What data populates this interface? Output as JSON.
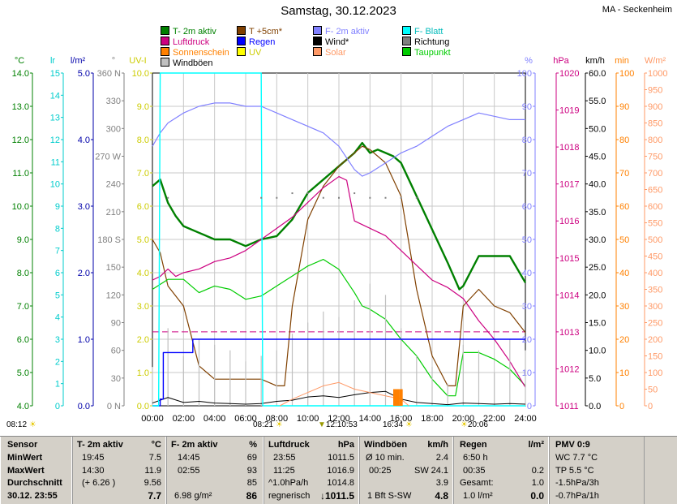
{
  "title": "Samstag, 30.12.2023",
  "station": "MA - Seckenheim",
  "legend": [
    {
      "label": "T- 2m aktiv",
      "color": "#008000"
    },
    {
      "label": "T +5cm*",
      "color": "#804000"
    },
    {
      "label": "F- 2m aktiv",
      "color": "#8080ff"
    },
    {
      "label": "F- Blatt",
      "color": "#00ffff"
    },
    {
      "label": "Luftdruck",
      "color": "#cc0080"
    },
    {
      "label": "Regen",
      "color": "#0000ff"
    },
    {
      "label": "Wind*",
      "color": "#000000"
    },
    {
      "label": "Richtung",
      "color": "#808080"
    },
    {
      "label": "Sonnenschein",
      "color": "#ff8000"
    },
    {
      "label": "UV",
      "color": "#ffff00"
    },
    {
      "label": "Solar",
      "color": "#ff9966"
    },
    {
      "label": "Taupunkt",
      "color": "#00cc00"
    },
    {
      "label": "Windböen",
      "color": "#c0c0c0"
    }
  ],
  "axes": [
    {
      "unit": "°C",
      "color": "#008000",
      "ticks": [
        "14.0",
        "13.0",
        "12.0",
        "11.0",
        "10.0",
        "9.0",
        "8.0",
        "7.0",
        "6.0",
        "5.0",
        "4.0"
      ]
    },
    {
      "unit": "lr",
      "color": "#00cccc",
      "ticks": [
        "15",
        "14",
        "13",
        "12",
        "11",
        "10",
        "9",
        "8",
        "7",
        "6",
        "5",
        "4",
        "3",
        "2",
        "1",
        "0"
      ]
    },
    {
      "unit": "l/m²",
      "color": "#0000aa",
      "ticks": [
        "5.0",
        "4.0",
        "3.0",
        "2.0",
        "1.0",
        "0.0"
      ]
    },
    {
      "unit": "°",
      "color": "#808080",
      "ticks": [
        "360 N",
        "330",
        "300",
        "270 W",
        "240",
        "210",
        "180 S",
        "150",
        "120",
        "90",
        "60",
        "30",
        "0 N"
      ]
    },
    {
      "unit": "UV-I",
      "color": "#cccc00",
      "ticks": [
        "10.0",
        "9.0",
        "8.0",
        "7.0",
        "6.0",
        "5.0",
        "4.0",
        "3.0",
        "2.0",
        "1.0",
        "0.0"
      ]
    },
    {
      "unit": "%",
      "color": "#8080ff",
      "ticks": [
        "100",
        "90",
        "80",
        "70",
        "60",
        "50",
        "40",
        "30",
        "20",
        "10",
        "0"
      ]
    },
    {
      "unit": "hPa",
      "color": "#cc0080",
      "ticks": [
        "1020",
        "1019",
        "1018",
        "1017",
        "1016",
        "1015",
        "1014",
        "1013",
        "1012",
        "1011"
      ]
    },
    {
      "unit": "km/h",
      "color": "#000000",
      "ticks": [
        "60.0",
        "55.0",
        "50.0",
        "45.0",
        "40.0",
        "35.0",
        "30.0",
        "25.0",
        "20.0",
        "15.0",
        "10.0",
        "5.0",
        "0.0"
      ]
    },
    {
      "unit": "min",
      "color": "#ff8000",
      "ticks": [
        "100",
        "90",
        "80",
        "70",
        "60",
        "50",
        "40",
        "30",
        "20",
        "10",
        "0"
      ]
    },
    {
      "unit": "W/m²",
      "color": "#ff9966",
      "ticks": [
        "1000",
        "950",
        "900",
        "850",
        "800",
        "750",
        "700",
        "650",
        "600",
        "550",
        "500",
        "450",
        "400",
        "350",
        "300",
        "250",
        "200",
        "150",
        "100",
        "50",
        "0"
      ]
    }
  ],
  "sun_labels": {
    "sunrise": "08:21",
    "noon": "12:10:53",
    "peak": "16:34",
    "sunset": "20:06",
    "left": "08:12"
  },
  "chart_data": {
    "type": "line",
    "x_label_ticks": [
      "00:00",
      "02:00",
      "04:00",
      "06:00",
      "08:00",
      "10:00",
      "12:00",
      "14:00",
      "16:00",
      "18:00",
      "20:00",
      "22:00",
      "24:00"
    ],
    "xlim": [
      0,
      24
    ],
    "series": [
      {
        "name": "T- 2m aktiv",
        "axis": "°C",
        "ylim": [
          4,
          14
        ],
        "color": "#008000",
        "x": [
          0,
          0.5,
          1,
          1.5,
          2,
          3,
          4,
          5,
          6,
          7,
          8,
          9,
          10,
          11,
          12,
          12.5,
          13,
          13.5,
          14,
          14.5,
          15,
          15.5,
          16,
          17,
          18,
          19,
          19.75,
          20,
          21,
          22,
          23,
          24
        ],
        "y": [
          10.6,
          10.8,
          10.1,
          9.7,
          9.4,
          9.2,
          9.0,
          9.0,
          8.8,
          9.0,
          9.1,
          9.6,
          10.4,
          10.8,
          11.2,
          11.4,
          11.6,
          11.9,
          11.6,
          11.7,
          11.6,
          11.5,
          11.3,
          10.3,
          9.3,
          8.3,
          7.5,
          7.6,
          8.5,
          8.5,
          8.5,
          7.7
        ]
      },
      {
        "name": "T +5cm*",
        "axis": "°C",
        "ylim": [
          4,
          14
        ],
        "color": "#804000",
        "x": [
          0,
          0.5,
          1,
          2,
          3,
          4,
          5,
          6,
          7,
          8,
          8.5,
          9,
          10,
          11,
          12,
          13,
          13.5,
          14,
          14.5,
          15,
          15.5,
          16,
          17,
          18,
          19,
          19.5,
          20,
          21,
          22,
          23,
          24
        ],
        "y": [
          9.0,
          8.6,
          7.6,
          7.0,
          5.2,
          4.8,
          4.8,
          4.8,
          4.8,
          4.6,
          4.6,
          7.0,
          9.6,
          10.6,
          11.2,
          11.6,
          11.8,
          11.7,
          11.5,
          11.3,
          10.8,
          10.3,
          7.5,
          5.5,
          4.6,
          4.6,
          7.0,
          7.5,
          7.0,
          6.8,
          6.2
        ]
      },
      {
        "name": "Taupunkt",
        "axis": "°C",
        "ylim": [
          4,
          14
        ],
        "color": "#00cc00",
        "x": [
          0,
          1,
          2,
          3,
          4,
          5,
          6,
          7,
          8,
          9,
          10,
          11,
          12,
          13,
          13.5,
          14,
          15,
          16,
          17,
          18,
          19,
          19.5,
          20,
          21,
          22,
          23,
          24
        ],
        "y": [
          7.5,
          7.8,
          7.8,
          7.4,
          7.6,
          7.5,
          7.2,
          7.3,
          7.6,
          7.9,
          8.2,
          8.4,
          8.1,
          7.4,
          7.0,
          6.9,
          6.6,
          6.0,
          5.5,
          4.8,
          4.3,
          4.3,
          5.6,
          5.6,
          5.4,
          5.1,
          4.6
        ]
      },
      {
        "name": "F- 2m aktiv",
        "axis": "%",
        "ylim": [
          0,
          100
        ],
        "color": "#8080ff",
        "x": [
          0,
          0.5,
          1,
          2,
          3,
          4,
          5,
          6,
          7,
          8,
          9,
          10,
          11,
          12,
          13,
          13.5,
          14,
          15,
          16,
          17,
          18,
          19,
          20,
          20.5,
          21,
          22,
          23,
          24
        ],
        "y": [
          78,
          82,
          85,
          88,
          90,
          91,
          91,
          90,
          90,
          88,
          86,
          84,
          82,
          78,
          71,
          69,
          70,
          73,
          76,
          78,
          81,
          84,
          86,
          87,
          88,
          87,
          86,
          86
        ]
      },
      {
        "name": "Luftdruck",
        "axis": "hPa",
        "ylim": [
          1011,
          1020
        ],
        "color": "#cc0080",
        "x": [
          0,
          0.5,
          1,
          1.5,
          2,
          3,
          4,
          5,
          6,
          7,
          8,
          9,
          10,
          11,
          12,
          12.5,
          13,
          14,
          15,
          16,
          17,
          18,
          19,
          20,
          21,
          22,
          23,
          24
        ],
        "y": [
          1014.4,
          1014.5,
          1014.7,
          1014.5,
          1014.6,
          1014.7,
          1014.9,
          1015.0,
          1015.2,
          1015.5,
          1015.8,
          1016.1,
          1016.5,
          1016.9,
          1017.2,
          1017.1,
          1016.0,
          1015.8,
          1015.6,
          1015.2,
          1014.8,
          1014.4,
          1014.2,
          1013.9,
          1013.3,
          1012.8,
          1012.2,
          1011.5
        ]
      },
      {
        "name": "Windböen",
        "axis": "km/h",
        "ylim": [
          0,
          60
        ],
        "color": "#c0c0c0",
        "x": [
          0,
          1,
          2,
          3,
          4,
          5,
          6,
          7,
          8,
          9,
          10,
          11,
          12,
          13,
          14,
          15,
          16,
          17,
          18,
          19,
          20,
          21,
          22,
          23,
          24
        ],
        "y": [
          7,
          14,
          9,
          12,
          11,
          10,
          8,
          9,
          10,
          13,
          15,
          17,
          16,
          19,
          22,
          20,
          14,
          9,
          7,
          4,
          11,
          10,
          6,
          12,
          10
        ]
      },
      {
        "name": "Wind*",
        "axis": "km/h",
        "ylim": [
          0,
          60
        ],
        "color": "#000000",
        "x": [
          0,
          1,
          2,
          3,
          4,
          5,
          6,
          7,
          8,
          9,
          10,
          11,
          12,
          13,
          14,
          15,
          16,
          17,
          18,
          19,
          20,
          21,
          22,
          23,
          24
        ],
        "y": [
          0.5,
          1.5,
          0.6,
          0.8,
          0.5,
          0.4,
          0.3,
          0.4,
          0.8,
          1.0,
          1.6,
          1.8,
          1.5,
          2.0,
          2.4,
          2.6,
          1.2,
          0.6,
          0.4,
          0.2,
          0.5,
          0.4,
          0.3,
          0.4,
          0.3
        ]
      },
      {
        "name": "Regen",
        "axis": "l/m²",
        "ylim": [
          0,
          5
        ],
        "color": "#0000ff",
        "x": [
          0,
          0.5,
          0.7,
          2.5,
          2.6,
          24
        ],
        "y": [
          0,
          0.1,
          0.8,
          0.8,
          1.0,
          1.0
        ]
      },
      {
        "name": "F- Blatt",
        "axis": "lr",
        "ylim": [
          0,
          15
        ],
        "color": "#00ffff",
        "x": [
          0,
          0.4,
          0.5,
          7.0,
          7.1,
          24
        ],
        "y": [
          0,
          0,
          15,
          15,
          0,
          0
        ]
      },
      {
        "name": "Richtung",
        "axis": "°",
        "ylim": [
          0,
          360
        ],
        "color": "#808080",
        "x": [
          0,
          1,
          7,
          8,
          9,
          10,
          11,
          12,
          13,
          14,
          15,
          16,
          17
        ],
        "y": [
          225,
          225,
          225,
          225,
          230,
          230,
          225,
          225,
          230,
          225,
          225,
          225,
          225
        ]
      },
      {
        "name": "Solar",
        "axis": "W/m²",
        "ylim": [
          0,
          1000
        ],
        "color": "#ff9966",
        "x": [
          8.2,
          9,
          10,
          11,
          12,
          13,
          14,
          15,
          16,
          16.5
        ],
        "y": [
          0,
          20,
          40,
          60,
          70,
          50,
          40,
          30,
          20,
          0
        ]
      },
      {
        "name": "Sonnenschein",
        "axis": "min",
        "ylim": [
          0,
          100
        ],
        "color": "#ff8000",
        "x": [
          15.6,
          15.8,
          16.0
        ],
        "y": [
          5,
          5,
          5
        ]
      }
    ],
    "reference_lines": [
      {
        "name": "Luftdruck Durchschnitt",
        "axis": "hPa",
        "y": 1013.0,
        "color": "#cc0080"
      }
    ]
  },
  "footer": {
    "sensor": {
      "h": "Sensor",
      "min": "MinWert",
      "max": "MaxWert",
      "avg": "Durchschnitt",
      "date": "30.12. 23:55"
    },
    "temp": {
      "h": "T- 2m aktiv",
      "unit": "°C",
      "min_t": "19:45",
      "min_v": "7.5",
      "max_t": "14:30",
      "max_v": "11.9",
      "avg_t": "(+ 6.26 )",
      "avg_v": "9.56",
      "cur_v": "7.7"
    },
    "hum": {
      "h": "F- 2m aktiv",
      "unit": "%",
      "min_t": "14:45",
      "min_v": "69",
      "max_t": "02:55",
      "max_v": "93",
      "avg_v": "85",
      "extra": "6.98 g/m²",
      "cur_v": "86"
    },
    "press": {
      "h": "Luftdruck",
      "unit": "hPa",
      "min_t": "23:55",
      "min_v": "1011.5",
      "max_t": "11:25",
      "max_v": "1016.9",
      "avg_t": "^1.0hPa/h",
      "avg_v": "1014.8",
      "trend": "regnerisch",
      "cur_v": "↓1011.5"
    },
    "wind": {
      "h": "Windböen",
      "unit": "km/h",
      "r1_l": "Ø 10 min.",
      "r1_v": "2.4",
      "r2_l": "00:25",
      "r2_m": "SW",
      "r2_v": "24.1",
      "r3_v": "3.9",
      "cur_l": "1 Bft S-SW",
      "cur_v": "4.8"
    },
    "rain": {
      "h": "Regen",
      "unit": "l/m²",
      "r1_l": "6:50 h",
      "r2_l": "00:35",
      "r2_v": "0.2",
      "r3_l": "Gesamt:",
      "r3_v": "1.0",
      "r4_l": "1.0 l/m²",
      "cur_v": "0.0"
    },
    "pmv": {
      "h": "PMV 0:9",
      "r1": "WC 7.7 °C",
      "r2": "TP 5.5 °C",
      "r3": "-1.5hPa/3h",
      "r4": "-0.7hPa/1h"
    }
  }
}
